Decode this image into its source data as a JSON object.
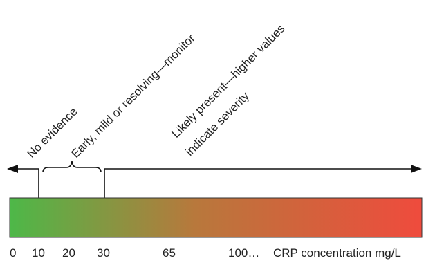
{
  "annotations": {
    "no_evidence": "No evidence",
    "early": "Early, mild or resolving—monitor",
    "likely_line1": "Likely present—higher values",
    "likely_line2": "indicate severity"
  },
  "axis": {
    "ticks": [
      "0",
      "10",
      "20",
      "30",
      "65",
      "100…"
    ],
    "unit_label": "CRP concentration mg/L"
  },
  "colors": {
    "gradient_start": "#4db848",
    "gradient_mid": "#b8783c",
    "gradient_end": "#ef4b3d",
    "line": "#111111"
  },
  "icons": [
    "left-arrow-icon",
    "right-arrow-icon",
    "curly-brace-icon"
  ]
}
